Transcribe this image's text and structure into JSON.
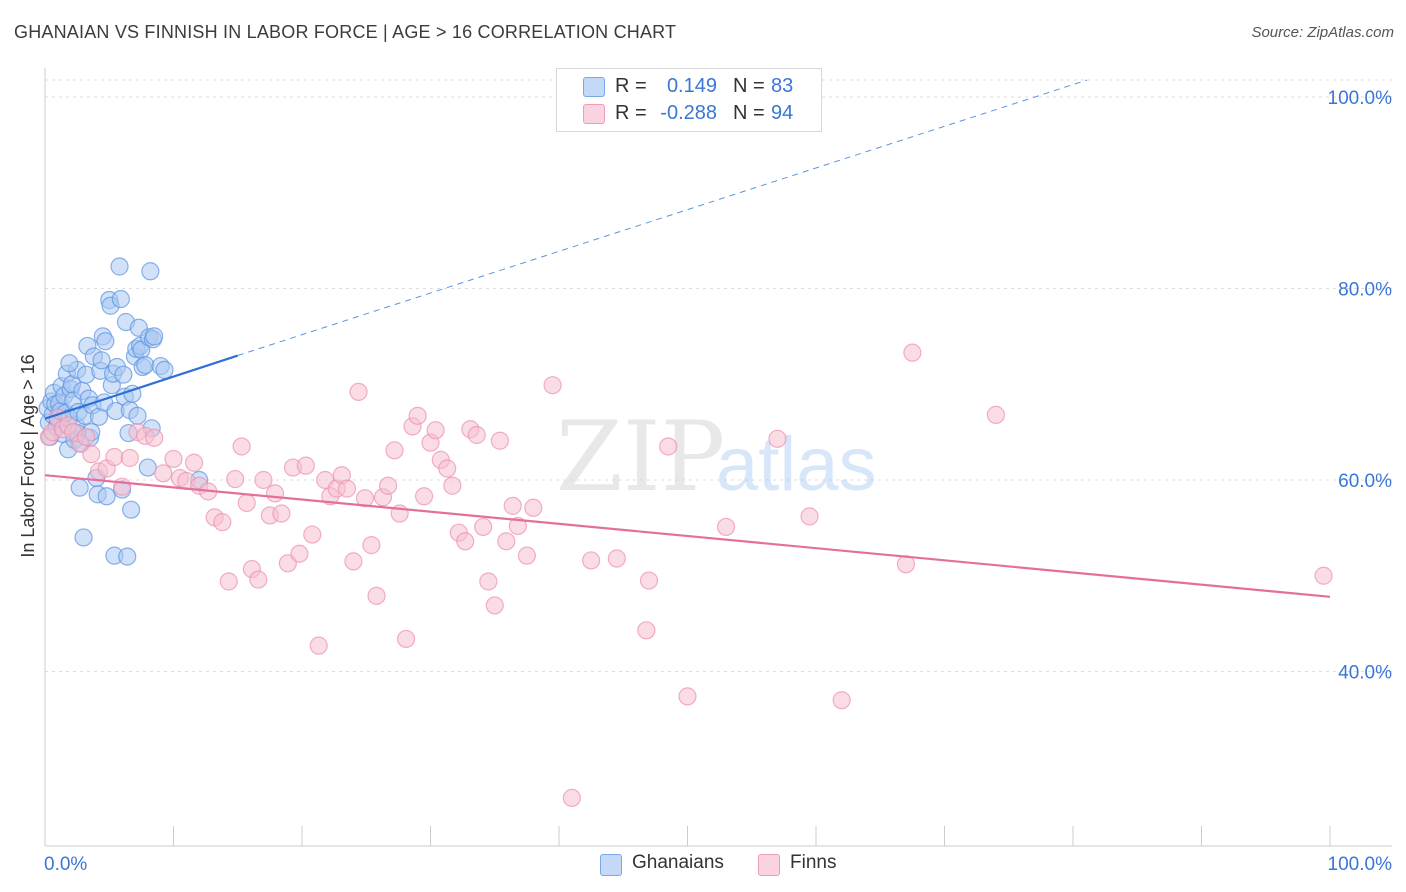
{
  "title": "GHANAIAN VS FINNISH IN LABOR FORCE | AGE > 16 CORRELATION CHART",
  "source": "Source: ZipAtlas.com",
  "watermark": {
    "zip": "ZIP",
    "atlas": "atlas"
  },
  "legend": {
    "rows": [
      {
        "r_label": "R =",
        "r_value": "0.149",
        "n_label": "N =",
        "n_value": "83",
        "color": "#a9c8f2"
      },
      {
        "r_label": "R =",
        "r_value": "-0.288",
        "n_label": "N =",
        "n_value": "94",
        "color": "#f6bfd0"
      }
    ]
  },
  "bottom_legend": [
    {
      "label": "Ghanaians",
      "color": "#a9c8f2"
    },
    {
      "label": "Finns",
      "color": "#f6bfd0"
    }
  ],
  "chart_data": {
    "type": "scatter",
    "title": "GHANAIAN VS FINNISH IN LABOR FORCE | AGE > 16 CORRELATION CHART",
    "xlabel": "",
    "ylabel": "In Labor Force | Age > 16",
    "xlim": [
      0,
      100
    ],
    "ylim": [
      20,
      100
    ],
    "x_tick_labels": [
      "0.0%",
      "100.0%"
    ],
    "y_ticks": [
      {
        "value": 100,
        "label": "100.0%"
      },
      {
        "value": 80,
        "label": "80.0%"
      },
      {
        "value": 60,
        "label": "60.0%"
      },
      {
        "value": 40,
        "label": "40.0%"
      }
    ],
    "series": [
      {
        "name": "Ghanaians",
        "color": "#5b93e0",
        "fill": "#a9c8f2",
        "trend": {
          "x0": 0,
          "y0": 66.4,
          "x1": 15,
          "y1": 73.0,
          "dash_to_x": 100,
          "dash_to_y": 110.0
        },
        "points": [
          [
            0.2,
            67.5
          ],
          [
            0.3,
            66.0
          ],
          [
            0.4,
            64.5
          ],
          [
            0.5,
            68.2
          ],
          [
            0.6,
            66.8
          ],
          [
            0.7,
            69.1
          ],
          [
            0.8,
            67.9
          ],
          [
            0.9,
            65.5
          ],
          [
            1.0,
            66.3
          ],
          [
            1.1,
            68.0
          ],
          [
            1.2,
            67.2
          ],
          [
            1.3,
            69.8
          ],
          [
            1.4,
            64.8
          ],
          [
            1.5,
            68.8
          ],
          [
            1.6,
            67.0
          ],
          [
            1.7,
            71.1
          ],
          [
            1.8,
            63.2
          ],
          [
            1.9,
            66.5
          ],
          [
            2.0,
            69.5
          ],
          [
            2.1,
            70.0
          ],
          [
            2.2,
            68.3
          ],
          [
            2.3,
            64.2
          ],
          [
            2.4,
            65.7
          ],
          [
            2.5,
            71.5
          ],
          [
            2.6,
            67.1
          ],
          [
            2.7,
            59.2
          ],
          [
            2.8,
            63.8
          ],
          [
            2.9,
            69.3
          ],
          [
            3.0,
            54.0
          ],
          [
            3.1,
            66.7
          ],
          [
            3.2,
            71.0
          ],
          [
            3.3,
            74.0
          ],
          [
            3.4,
            68.5
          ],
          [
            3.5,
            64.4
          ],
          [
            3.6,
            65.0
          ],
          [
            3.7,
            67.8
          ],
          [
            3.8,
            72.9
          ],
          [
            4.0,
            60.2
          ],
          [
            4.1,
            58.5
          ],
          [
            4.2,
            66.6
          ],
          [
            4.3,
            71.4
          ],
          [
            4.4,
            72.5
          ],
          [
            4.5,
            75.0
          ],
          [
            4.6,
            68.1
          ],
          [
            4.7,
            74.5
          ],
          [
            4.8,
            58.3
          ],
          [
            5.0,
            78.8
          ],
          [
            5.1,
            78.2
          ],
          [
            5.2,
            69.9
          ],
          [
            5.3,
            71.1
          ],
          [
            5.4,
            52.1
          ],
          [
            5.5,
            67.2
          ],
          [
            5.6,
            71.8
          ],
          [
            5.8,
            82.3
          ],
          [
            5.9,
            78.9
          ],
          [
            6.0,
            59.0
          ],
          [
            6.1,
            71.0
          ],
          [
            6.2,
            68.7
          ],
          [
            6.3,
            76.5
          ],
          [
            6.4,
            52.0
          ],
          [
            6.5,
            64.9
          ],
          [
            6.6,
            67.3
          ],
          [
            6.7,
            56.9
          ],
          [
            6.8,
            69.0
          ],
          [
            7.0,
            72.9
          ],
          [
            7.1,
            73.7
          ],
          [
            7.2,
            66.7
          ],
          [
            7.3,
            75.9
          ],
          [
            7.4,
            74.0
          ],
          [
            7.5,
            73.6
          ],
          [
            7.6,
            71.8
          ],
          [
            7.8,
            72.0
          ],
          [
            8.0,
            61.3
          ],
          [
            8.1,
            74.9
          ],
          [
            8.2,
            81.8
          ],
          [
            8.3,
            65.4
          ],
          [
            8.4,
            74.7
          ],
          [
            8.5,
            75.0
          ],
          [
            9.0,
            71.9
          ],
          [
            9.3,
            71.5
          ],
          [
            12.0,
            60.0
          ],
          [
            2.5,
            64.9
          ],
          [
            1.9,
            72.2
          ]
        ]
      },
      {
        "name": "Finns",
        "color": "#ec8fae",
        "fill": "#f6bfd0",
        "trend": {
          "x0": 0,
          "y0": 60.5,
          "x1": 100,
          "y1": 47.8
        },
        "points": [
          [
            0.3,
            64.5
          ],
          [
            0.6,
            65.0
          ],
          [
            1.0,
            66.5
          ],
          [
            1.4,
            65.3
          ],
          [
            1.8,
            65.7
          ],
          [
            2.2,
            65.0
          ],
          [
            2.7,
            63.8
          ],
          [
            3.2,
            64.5
          ],
          [
            3.6,
            62.7
          ],
          [
            4.2,
            60.9
          ],
          [
            4.8,
            61.2
          ],
          [
            5.4,
            62.4
          ],
          [
            6.0,
            59.3
          ],
          [
            6.6,
            62.3
          ],
          [
            7.2,
            65.0
          ],
          [
            7.8,
            64.6
          ],
          [
            8.5,
            64.4
          ],
          [
            9.2,
            60.7
          ],
          [
            10.0,
            62.2
          ],
          [
            10.5,
            60.2
          ],
          [
            11.0,
            59.9
          ],
          [
            11.6,
            61.8
          ],
          [
            12.0,
            59.4
          ],
          [
            12.7,
            58.8
          ],
          [
            13.2,
            56.1
          ],
          [
            13.8,
            55.6
          ],
          [
            14.3,
            49.4
          ],
          [
            14.8,
            60.1
          ],
          [
            15.3,
            63.5
          ],
          [
            15.7,
            57.6
          ],
          [
            16.1,
            50.7
          ],
          [
            16.6,
            49.6
          ],
          [
            17.0,
            60.0
          ],
          [
            17.5,
            56.3
          ],
          [
            17.9,
            58.6
          ],
          [
            18.4,
            56.5
          ],
          [
            18.9,
            51.3
          ],
          [
            19.3,
            61.3
          ],
          [
            19.8,
            52.3
          ],
          [
            20.3,
            61.5
          ],
          [
            20.8,
            54.3
          ],
          [
            21.3,
            42.7
          ],
          [
            21.8,
            60.0
          ],
          [
            22.2,
            58.3
          ],
          [
            22.7,
            59.1
          ],
          [
            23.1,
            60.5
          ],
          [
            23.5,
            59.1
          ],
          [
            24.0,
            51.5
          ],
          [
            24.4,
            69.2
          ],
          [
            24.9,
            58.1
          ],
          [
            25.4,
            53.2
          ],
          [
            25.8,
            47.9
          ],
          [
            26.3,
            58.2
          ],
          [
            26.7,
            59.4
          ],
          [
            27.2,
            63.1
          ],
          [
            27.6,
            56.5
          ],
          [
            28.1,
            43.4
          ],
          [
            28.6,
            65.6
          ],
          [
            29.0,
            66.7
          ],
          [
            29.5,
            58.3
          ],
          [
            30.0,
            63.9
          ],
          [
            30.4,
            65.2
          ],
          [
            30.8,
            62.1
          ],
          [
            31.3,
            61.2
          ],
          [
            31.7,
            59.4
          ],
          [
            32.2,
            54.5
          ],
          [
            32.7,
            53.6
          ],
          [
            33.1,
            65.3
          ],
          [
            33.6,
            64.7
          ],
          [
            34.1,
            55.1
          ],
          [
            34.5,
            49.4
          ],
          [
            35.0,
            46.9
          ],
          [
            35.4,
            64.1
          ],
          [
            35.9,
            53.6
          ],
          [
            36.4,
            57.3
          ],
          [
            36.8,
            55.2
          ],
          [
            37.5,
            52.1
          ],
          [
            38.0,
            57.1
          ],
          [
            39.5,
            69.9
          ],
          [
            41.0,
            26.8
          ],
          [
            42.5,
            51.6
          ],
          [
            44.5,
            51.8
          ],
          [
            46.8,
            44.3
          ],
          [
            47.0,
            49.5
          ],
          [
            48.5,
            63.5
          ],
          [
            50.0,
            37.4
          ],
          [
            53.0,
            55.1
          ],
          [
            57.0,
            64.3
          ],
          [
            59.5,
            56.2
          ],
          [
            62.0,
            37.0
          ],
          [
            67.0,
            51.2
          ],
          [
            67.5,
            73.3
          ],
          [
            74.0,
            66.8
          ],
          [
            99.5,
            50.0
          ]
        ]
      }
    ]
  }
}
